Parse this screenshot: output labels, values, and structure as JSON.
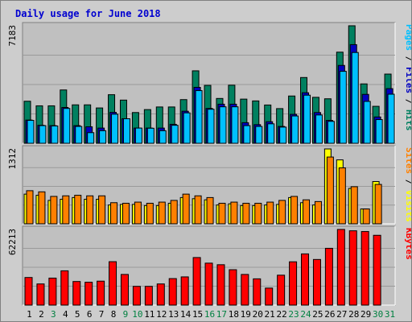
{
  "chart_data": {
    "title": "Daily usage for June 2018",
    "categories": [
      "1",
      "2",
      "3",
      "4",
      "5",
      "6",
      "7",
      "8",
      "9",
      "10",
      "11",
      "12",
      "13",
      "14",
      "15",
      "16",
      "17",
      "18",
      "19",
      "20",
      "21",
      "22",
      "23",
      "24",
      "25",
      "26",
      "27",
      "28",
      "29",
      "30",
      "31"
    ],
    "weekend_days": [
      "3",
      "9",
      "10",
      "16",
      "17",
      "23",
      "24",
      "30",
      "31"
    ],
    "colors": {
      "hits": "#008060",
      "files": "#0000c0",
      "pages": "#00c0ff",
      "visits": "#ffff00",
      "sites": "#ff8000",
      "kbytes": "#ff0000",
      "weekday_label": "#000000",
      "weekend_label": "#008040",
      "plot_bg": "#c0c0c0",
      "frame_bg": "#cdcdcd"
    },
    "panels": [
      {
        "type": "bar",
        "ymax_label": "7183",
        "ylim": [
          0,
          7183
        ],
        "right_label": [
          {
            "text": "Pages",
            "color": "#00c0ff"
          },
          {
            "text": " / ",
            "color": "#000000"
          },
          {
            "text": "Files",
            "color": "#0000c0"
          },
          {
            "text": " / ",
            "color": "#000000"
          },
          {
            "text": "Hits",
            "color": "#008060"
          }
        ],
        "series": [
          {
            "name": "Hits",
            "color": "#008060",
            "values": [
              2570,
              2290,
              2290,
              3260,
              2350,
              2350,
              2160,
              2970,
              2640,
              1880,
              2060,
              2220,
              2220,
              2670,
              4430,
              3540,
              2740,
              3550,
              2700,
              2590,
              2340,
              2120,
              2890,
              4020,
              2810,
              2720,
              5570,
              7183,
              3630,
              2260,
              4230
            ]
          },
          {
            "name": "Files",
            "color": "#0000c0",
            "values": [
              1420,
              1100,
              1080,
              2190,
              1080,
              1010,
              930,
              1890,
              1500,
              930,
              930,
              930,
              1160,
              1960,
              3420,
              2130,
              2390,
              2390,
              1260,
              1140,
              1320,
              1030,
              1770,
              3090,
              1880,
              1400,
              4760,
              6030,
              2990,
              1610,
              3340
            ]
          },
          {
            "name": "Pages",
            "color": "#00c0ff",
            "values": [
              1400,
              1080,
              1060,
              2130,
              1030,
              650,
              770,
              1780,
              1500,
              930,
              920,
              770,
              1100,
              1860,
              3220,
              2080,
              2230,
              2230,
              1080,
              1030,
              1190,
              990,
              1670,
              2940,
              1730,
              1340,
              4400,
              5550,
              2560,
              1450,
              3000
            ]
          }
        ]
      },
      {
        "type": "bar",
        "ymax_label": "1312",
        "ylim": [
          0,
          1312
        ],
        "right_label": [
          {
            "text": "Sites",
            "color": "#ff8000"
          },
          {
            "text": " / ",
            "color": "#000000"
          },
          {
            "text": "Visits",
            "color": "#ffff00"
          }
        ],
        "series": [
          {
            "name": "Visits",
            "color": "#ffff00",
            "values": [
              520,
              500,
              410,
              430,
              460,
              430,
              430,
              330,
              340,
              340,
              320,
              320,
              360,
              460,
              440,
              420,
              330,
              350,
              320,
              320,
              330,
              340,
              460,
              370,
              330,
              1312,
              1120,
              620,
              260,
              740,
              0
            ]
          },
          {
            "name": "Sites",
            "color": "#ff8000",
            "values": [
              580,
              560,
              480,
              490,
              500,
              490,
              490,
              370,
              360,
              380,
              360,
              380,
              410,
              520,
              490,
              460,
              360,
              380,
              360,
              360,
              380,
              410,
              480,
              420,
              390,
              1170,
              980,
              650,
              260,
              690,
              0
            ]
          }
        ]
      },
      {
        "type": "bar",
        "ymax_label": "62213",
        "ylim": [
          0,
          62213
        ],
        "right_label": [
          {
            "text": "KBytes",
            "color": "#ff0000"
          }
        ],
        "series": [
          {
            "name": "KBytes",
            "color": "#ff0000",
            "values": [
              22700,
              17400,
              22200,
              28200,
              19400,
              18800,
              19700,
              35700,
              25200,
              15400,
              15400,
              17400,
              21800,
              23200,
              39100,
              34500,
              33200,
              29100,
              25200,
              21600,
              14000,
              24600,
              35600,
              42100,
              37500,
              46700,
              62213,
              61100,
              60500,
              57400,
              0
            ]
          }
        ]
      }
    ]
  }
}
